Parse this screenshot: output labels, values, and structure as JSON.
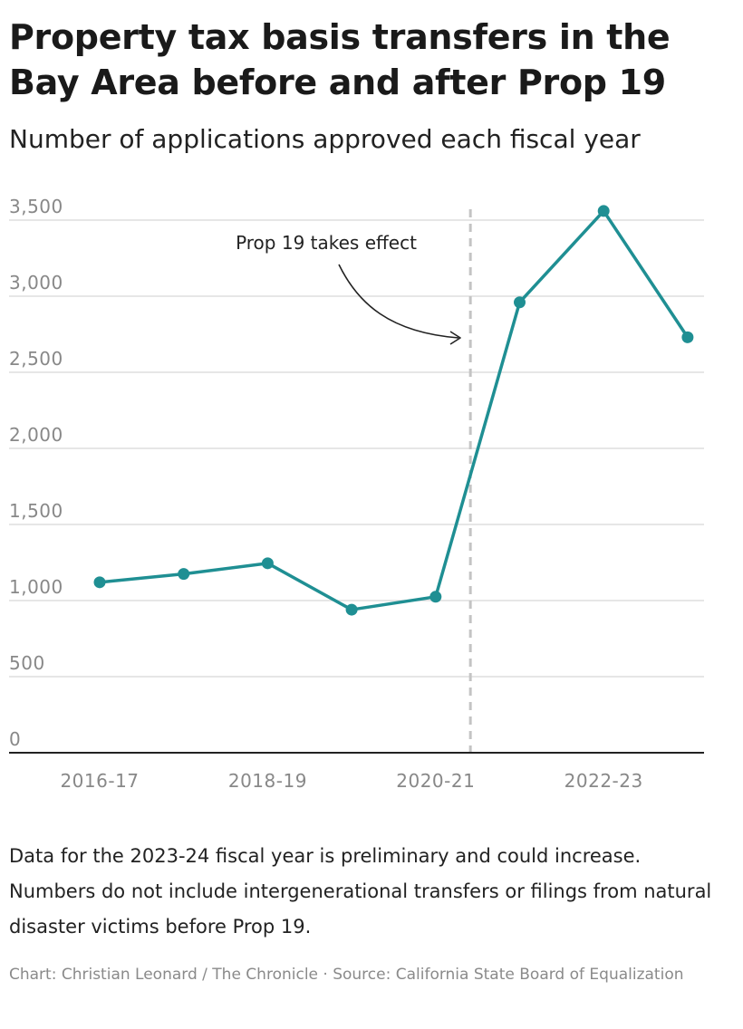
{
  "header": {
    "title": "Property tax basis transfers in the Bay Area before and after Prop 19",
    "subtitle": "Number of applications approved each fiscal year"
  },
  "chart_data": {
    "type": "line",
    "x": [
      "2016-17",
      "2017-18",
      "2018-19",
      "2019-20",
      "2020-21",
      "2021-22",
      "2022-23",
      "2023-24"
    ],
    "x_tick_labels": [
      "2016-17",
      "2018-19",
      "2020-21",
      "2022-23"
    ],
    "series": [
      {
        "values": [
          1120,
          1175,
          1245,
          940,
          1025,
          2960,
          3560,
          2730
        ]
      }
    ],
    "ylim": [
      0,
      3500
    ],
    "y_ticks": [
      0,
      500,
      1000,
      1500,
      2000,
      2500,
      3000,
      3500
    ],
    "y_tick_labels": [
      "0",
      "500",
      "1,000",
      "1,500",
      "2,000",
      "2,500",
      "3,000",
      "3,500"
    ],
    "grid": "horizontal",
    "annotation": {
      "text": "Prop 19 takes effect",
      "x_position": "between 2020-21 and 2021-22",
      "style": "dashed vertical line with curved arrow"
    },
    "colors": {
      "line": "#1f8f93",
      "reference_line": "#c4c4c4",
      "grid": "#dddddd",
      "axis": "#222222",
      "tick_label": "#888888"
    }
  },
  "footer": {
    "note": "Data for the 2023-24 fiscal year is preliminary and could increase. Numbers do not include intergenerational transfers or filings from natural disaster victims before Prop 19.",
    "credit": "Chart: Christian Leonard / The Chronicle · Source: California State Board of Equalization"
  }
}
